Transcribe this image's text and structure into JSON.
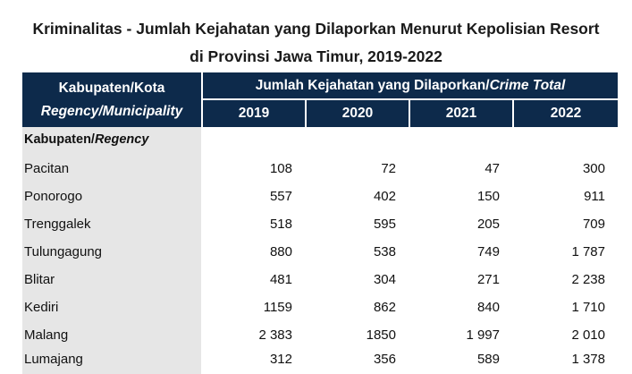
{
  "title": {
    "line1": "Kriminalitas - Jumlah Kejahatan yang Dilaporkan Menurut Kepolisian Resort",
    "line2": "di Provinsi Jawa Timur, 2019-2022"
  },
  "header": {
    "col_label": "Kabupaten/Kota",
    "col_label_en": "Regency/Municipality",
    "group_label": "Jumlah Kejahatan yang Dilaporkan/",
    "group_label_en": "Crime Total",
    "years": [
      "2019",
      "2020",
      "2021",
      "2022"
    ]
  },
  "section": {
    "label": "Kabupaten/",
    "label_en": "Regency"
  },
  "rows": [
    {
      "name": "Pacitan",
      "values": [
        "108",
        "72",
        "47",
        "300"
      ]
    },
    {
      "name": "Ponorogo",
      "values": [
        "557",
        "402",
        "150",
        "911"
      ]
    },
    {
      "name": "Trenggalek",
      "values": [
        "518",
        "595",
        "205",
        "709"
      ]
    },
    {
      "name": "Tulungagung",
      "values": [
        "880",
        "538",
        "749",
        "1 787"
      ]
    },
    {
      "name": "Blitar",
      "values": [
        "481",
        "304",
        "271",
        "2 238"
      ]
    },
    {
      "name": "Kediri",
      "values": [
        "1159",
        "862",
        "840",
        "1 710"
      ]
    },
    {
      "name": "Malang",
      "values": [
        "2 383",
        "1850",
        "1 997",
        "2 010"
      ]
    },
    {
      "name": "Lumajang",
      "values": [
        "312",
        "356",
        "589",
        "1 378"
      ]
    }
  ]
}
